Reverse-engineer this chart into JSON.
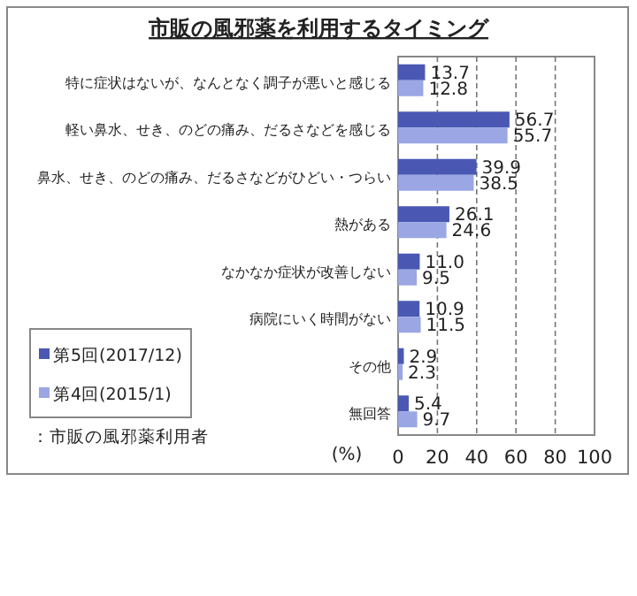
{
  "chart_data": {
    "type": "bar",
    "orientation": "horizontal",
    "title": "市販の風邪薬を利用するタイミング",
    "categories": [
      "特に症状はないが、なんとなく調子が悪いと感じる",
      "軽い鼻水、せき、のどの痛み、だるさなどを感じる",
      "鼻水、せき、のどの痛み、だるさなどがひどい・つらい",
      "熱がある",
      "なかなか症状が改善しない",
      "病院にいく時間がない",
      "その他",
      "無回答"
    ],
    "series": [
      {
        "name": "第5回(2017/12)",
        "color": "#4a58b4",
        "values": [
          13.7,
          56.7,
          39.9,
          26.1,
          11.0,
          10.9,
          2.9,
          5.4
        ]
      },
      {
        "name": "第4回(2015/1)",
        "color": "#9ba6e4",
        "values": [
          12.8,
          55.7,
          38.5,
          24.6,
          9.5,
          11.5,
          2.3,
          9.7
        ]
      }
    ],
    "value_labels": [
      [
        "13.7",
        "56.7",
        "39.9",
        "26.1",
        "11.0",
        "10.9",
        "2.9",
        "5.4"
      ],
      [
        "12.8",
        "55.7",
        "38.5",
        "24.6",
        "9.5",
        "11.5",
        "2.3",
        "9.7"
      ]
    ],
    "xlabel": "(%)",
    "xlim": [
      0,
      100
    ],
    "xticks": [
      0,
      20,
      40,
      60,
      80,
      100
    ],
    "grid": "x",
    "legend": "bottom left",
    "annotations": [
      "：市販の風邪薬利用者"
    ]
  }
}
